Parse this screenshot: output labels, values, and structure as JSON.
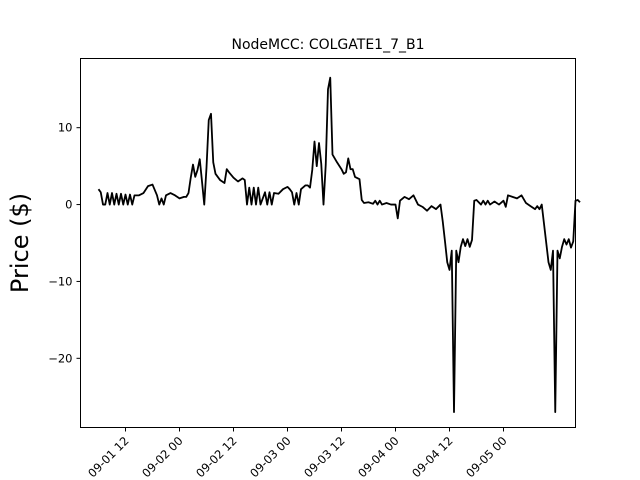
{
  "chart_data": {
    "type": "line",
    "title": "NodeMCC: COLGATE1_7_B1",
    "xlabel": "",
    "ylabel": "Price ($)",
    "xlim": [
      "2022-09-01 02:00",
      "2022-09-05 16:00"
    ],
    "ylim": [
      -29,
      19
    ],
    "x_ticks": [
      {
        "value": "2022-09-01 12:00",
        "label": "09-01 12"
      },
      {
        "value": "2022-09-02 00:00",
        "label": "09-02 00"
      },
      {
        "value": "2022-09-02 12:00",
        "label": "09-02 12"
      },
      {
        "value": "2022-09-03 00:00",
        "label": "09-03 00"
      },
      {
        "value": "2022-09-03 12:00",
        "label": "09-03 12"
      },
      {
        "value": "2022-09-04 00:00",
        "label": "09-04 00"
      },
      {
        "value": "2022-09-04 12:00",
        "label": "09-04 12"
      },
      {
        "value": "2022-09-05 00:00",
        "label": "09-05 00"
      }
    ],
    "y_ticks": [
      {
        "value": 10,
        "label": "10"
      },
      {
        "value": 0,
        "label": "0"
      },
      {
        "value": -10,
        "label": "−10"
      },
      {
        "value": -20,
        "label": "−20"
      }
    ],
    "grid": false,
    "series": [
      {
        "color": "#000000",
        "points": [
          [
            "2022-09-01 06:00",
            2.0
          ],
          [
            "2022-09-01 06:30",
            1.6
          ],
          [
            "2022-09-01 07:00",
            0.0
          ],
          [
            "2022-09-01 07:30",
            0.0
          ],
          [
            "2022-09-01 08:00",
            1.5
          ],
          [
            "2022-09-01 08:30",
            0.0
          ],
          [
            "2022-09-01 09:00",
            1.5
          ],
          [
            "2022-09-01 09:30",
            0.0
          ],
          [
            "2022-09-01 10:00",
            1.4
          ],
          [
            "2022-09-01 10:30",
            0.0
          ],
          [
            "2022-09-01 11:00",
            1.4
          ],
          [
            "2022-09-01 11:30",
            0.0
          ],
          [
            "2022-09-01 12:00",
            1.3
          ],
          [
            "2022-09-01 12:30",
            0.0
          ],
          [
            "2022-09-01 13:00",
            1.3
          ],
          [
            "2022-09-01 13:30",
            0.0
          ],
          [
            "2022-09-01 14:00",
            1.2
          ],
          [
            "2022-09-01 15:00",
            1.2
          ],
          [
            "2022-09-01 16:00",
            1.5
          ],
          [
            "2022-09-01 17:00",
            2.4
          ],
          [
            "2022-09-01 18:00",
            2.6
          ],
          [
            "2022-09-01 19:00",
            1.2
          ],
          [
            "2022-09-01 19:30",
            0.0
          ],
          [
            "2022-09-01 20:00",
            0.8
          ],
          [
            "2022-09-01 20:30",
            0.0
          ],
          [
            "2022-09-01 21:00",
            1.2
          ],
          [
            "2022-09-01 22:00",
            1.5
          ],
          [
            "2022-09-01 23:00",
            1.2
          ],
          [
            "2022-09-02 00:00",
            0.8
          ],
          [
            "2022-09-02 00:30",
            0.9
          ],
          [
            "2022-09-02 01:00",
            1.0
          ],
          [
            "2022-09-02 01:30",
            1.0
          ],
          [
            "2022-09-02 02:00",
            1.5
          ],
          [
            "2022-09-02 02:30",
            3.5
          ],
          [
            "2022-09-02 03:00",
            5.2
          ],
          [
            "2022-09-02 03:30",
            3.6
          ],
          [
            "2022-09-02 04:00",
            4.5
          ],
          [
            "2022-09-02 04:30",
            5.9
          ],
          [
            "2022-09-02 05:00",
            3.0
          ],
          [
            "2022-09-02 05:30",
            0.0
          ],
          [
            "2022-09-02 06:00",
            4.8
          ],
          [
            "2022-09-02 06:30",
            11.0
          ],
          [
            "2022-09-02 07:00",
            11.8
          ],
          [
            "2022-09-02 07:30",
            5.5
          ],
          [
            "2022-09-02 08:00",
            4.0
          ],
          [
            "2022-09-02 09:00",
            3.2
          ],
          [
            "2022-09-02 10:00",
            2.8
          ],
          [
            "2022-09-02 10:30",
            4.6
          ],
          [
            "2022-09-02 11:00",
            4.2
          ],
          [
            "2022-09-02 12:00",
            3.5
          ],
          [
            "2022-09-02 13:00",
            3.0
          ],
          [
            "2022-09-02 14:00",
            3.4
          ],
          [
            "2022-09-02 14:30",
            3.2
          ],
          [
            "2022-09-02 15:00",
            0.0
          ],
          [
            "2022-09-02 15:30",
            2.2
          ],
          [
            "2022-09-02 16:00",
            0.0
          ],
          [
            "2022-09-02 16:30",
            2.2
          ],
          [
            "2022-09-02 17:00",
            0.0
          ],
          [
            "2022-09-02 17:30",
            2.2
          ],
          [
            "2022-09-02 18:00",
            0.0
          ],
          [
            "2022-09-02 19:00",
            1.6
          ],
          [
            "2022-09-02 19:30",
            0.0
          ],
          [
            "2022-09-02 20:00",
            1.6
          ],
          [
            "2022-09-02 20:30",
            0.0
          ],
          [
            "2022-09-02 21:00",
            1.5
          ],
          [
            "2022-09-02 22:00",
            1.4
          ],
          [
            "2022-09-02 23:00",
            2.0
          ],
          [
            "2022-09-03 00:00",
            2.3
          ],
          [
            "2022-09-03 00:30",
            2.0
          ],
          [
            "2022-09-03 01:00",
            1.6
          ],
          [
            "2022-09-03 01:30",
            0.0
          ],
          [
            "2022-09-03 02:00",
            1.5
          ],
          [
            "2022-09-03 02:30",
            0.0
          ],
          [
            "2022-09-03 03:00",
            2.0
          ],
          [
            "2022-09-03 04:00",
            2.5
          ],
          [
            "2022-09-03 04:30",
            2.5
          ],
          [
            "2022-09-03 05:00",
            2.2
          ],
          [
            "2022-09-03 05:30",
            4.5
          ],
          [
            "2022-09-03 06:00",
            8.2
          ],
          [
            "2022-09-03 06:30",
            5.0
          ],
          [
            "2022-09-03 07:00",
            8.0
          ],
          [
            "2022-09-03 07:30",
            5.3
          ],
          [
            "2022-09-03 08:00",
            0.0
          ],
          [
            "2022-09-03 08:30",
            5.2
          ],
          [
            "2022-09-03 09:00",
            15.0
          ],
          [
            "2022-09-03 09:30",
            16.5
          ],
          [
            "2022-09-03 10:00",
            6.5
          ],
          [
            "2022-09-03 11:00",
            5.5
          ],
          [
            "2022-09-03 12:00",
            4.6
          ],
          [
            "2022-09-03 12:30",
            4.0
          ],
          [
            "2022-09-03 13:00",
            4.2
          ],
          [
            "2022-09-03 13:30",
            6.0
          ],
          [
            "2022-09-03 14:00",
            4.6
          ],
          [
            "2022-09-03 14:30",
            4.6
          ],
          [
            "2022-09-03 15:00",
            3.6
          ],
          [
            "2022-09-03 16:00",
            3.3
          ],
          [
            "2022-09-03 16:30",
            0.6
          ],
          [
            "2022-09-03 17:00",
            0.2
          ],
          [
            "2022-09-03 18:00",
            0.3
          ],
          [
            "2022-09-03 19:00",
            0.1
          ],
          [
            "2022-09-03 19:30",
            0.5
          ],
          [
            "2022-09-03 20:00",
            0.0
          ],
          [
            "2022-09-03 20:30",
            0.5
          ],
          [
            "2022-09-03 21:00",
            0.0
          ],
          [
            "2022-09-03 22:00",
            0.2
          ],
          [
            "2022-09-03 23:00",
            0.0
          ],
          [
            "2022-09-04 00:00",
            0.0
          ],
          [
            "2022-09-04 00:30",
            -1.8
          ],
          [
            "2022-09-04 01:00",
            0.5
          ],
          [
            "2022-09-04 02:00",
            1.0
          ],
          [
            "2022-09-04 03:00",
            0.7
          ],
          [
            "2022-09-04 04:00",
            1.2
          ],
          [
            "2022-09-04 05:00",
            0.0
          ],
          [
            "2022-09-04 06:00",
            -0.3
          ],
          [
            "2022-09-04 07:00",
            -0.8
          ],
          [
            "2022-09-04 08:00",
            -0.2
          ],
          [
            "2022-09-04 09:00",
            -0.6
          ],
          [
            "2022-09-04 10:00",
            0.0
          ],
          [
            "2022-09-04 10:30",
            -2.2
          ],
          [
            "2022-09-04 11:00",
            -4.8
          ],
          [
            "2022-09-04 11:30",
            -7.5
          ],
          [
            "2022-09-04 12:00",
            -8.5
          ],
          [
            "2022-09-04 12:30",
            -6.0
          ],
          [
            "2022-09-04 13:00",
            -27.0
          ],
          [
            "2022-09-04 13:30",
            -6.0
          ],
          [
            "2022-09-04 14:00",
            -7.5
          ],
          [
            "2022-09-04 14:30",
            -5.5
          ],
          [
            "2022-09-04 15:00",
            -4.5
          ],
          [
            "2022-09-04 15:30",
            -5.4
          ],
          [
            "2022-09-04 16:00",
            -4.5
          ],
          [
            "2022-09-04 16:30",
            -5.5
          ],
          [
            "2022-09-04 17:00",
            -4.6
          ],
          [
            "2022-09-04 17:30",
            0.5
          ],
          [
            "2022-09-04 18:00",
            0.6
          ],
          [
            "2022-09-04 19:00",
            0.0
          ],
          [
            "2022-09-04 19:30",
            0.5
          ],
          [
            "2022-09-04 20:00",
            0.0
          ],
          [
            "2022-09-04 20:30",
            0.5
          ],
          [
            "2022-09-04 21:00",
            0.0
          ],
          [
            "2022-09-04 22:00",
            0.4
          ],
          [
            "2022-09-04 23:00",
            0.0
          ],
          [
            "2022-09-05 00:00",
            0.5
          ],
          [
            "2022-09-05 00:30",
            -0.3
          ],
          [
            "2022-09-05 01:00",
            1.2
          ],
          [
            "2022-09-05 02:00",
            1.0
          ],
          [
            "2022-09-05 03:00",
            0.8
          ],
          [
            "2022-09-05 04:00",
            1.2
          ],
          [
            "2022-09-05 05:00",
            0.2
          ],
          [
            "2022-09-05 06:00",
            -0.2
          ],
          [
            "2022-09-05 07:00",
            -0.6
          ],
          [
            "2022-09-05 07:30",
            -0.2
          ],
          [
            "2022-09-05 08:00",
            -0.6
          ],
          [
            "2022-09-05 08:30",
            0.0
          ],
          [
            "2022-09-05 09:00",
            -2.5
          ],
          [
            "2022-09-05 09:30",
            -5.0
          ],
          [
            "2022-09-05 10:00",
            -7.5
          ],
          [
            "2022-09-05 10:30",
            -8.5
          ],
          [
            "2022-09-05 11:00",
            -6.0
          ],
          [
            "2022-09-05 11:30",
            -27.0
          ],
          [
            "2022-09-05 12:00",
            -6.0
          ],
          [
            "2022-09-05 12:30",
            -7.0
          ],
          [
            "2022-09-05 13:00",
            -5.5
          ],
          [
            "2022-09-05 13:30",
            -4.5
          ],
          [
            "2022-09-05 14:00",
            -5.2
          ],
          [
            "2022-09-05 14:30",
            -4.5
          ],
          [
            "2022-09-05 15:00",
            -5.6
          ],
          [
            "2022-09-05 15:30",
            -4.8
          ],
          [
            "2022-09-05 16:00",
            0.5
          ],
          [
            "2022-09-05 16:30",
            0.6
          ],
          [
            "2022-09-05 17:00",
            0.3
          ]
        ]
      }
    ]
  }
}
